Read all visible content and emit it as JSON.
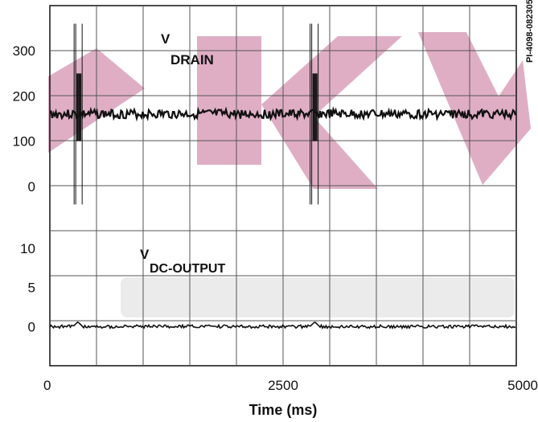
{
  "chart_data": {
    "type": "line",
    "figure_id": "PI-4098-082305",
    "xlabel": "Time (ms)",
    "xlim": [
      0,
      5000
    ],
    "x_ticks": [
      "0",
      "2500",
      "5000"
    ],
    "grid": true,
    "watermark_colors": {
      "main": "#d9a0bb",
      "faint": "#e6e6e6"
    },
    "panels": [
      {
        "name": "drain",
        "label_main": "V",
        "label_sub": "DRAIN",
        "y_ticks": [
          {
            "label": "300",
            "value": 300
          },
          {
            "label": "200",
            "value": 200
          },
          {
            "label": "100",
            "value": 100
          },
          {
            "label": "0",
            "value": 0
          }
        ],
        "ylim": [
          -50,
          400
        ],
        "series": {
          "baseline": 160,
          "ripple": 10,
          "bursts": [
            {
              "x_start": 260,
              "x_end": 360,
              "max": 360,
              "min": -40
            },
            {
              "x_start": 2790,
              "x_end": 2890,
              "max": 360,
              "min": -40
            }
          ]
        }
      },
      {
        "name": "dc-output",
        "label_main": "V",
        "label_sub": "DC-OUTPUT",
        "y_ticks": [
          {
            "label": "10",
            "value": 10
          },
          {
            "label": "5",
            "value": 5
          },
          {
            "label": "0",
            "value": 0
          }
        ],
        "ylim": [
          -5,
          15
        ],
        "series": {
          "baseline": 0,
          "ripple": 0.2,
          "bumps": [
            {
              "x": 300,
              "height": 0.6
            },
            {
              "x": 2840,
              "height": 0.6
            }
          ]
        }
      }
    ]
  }
}
